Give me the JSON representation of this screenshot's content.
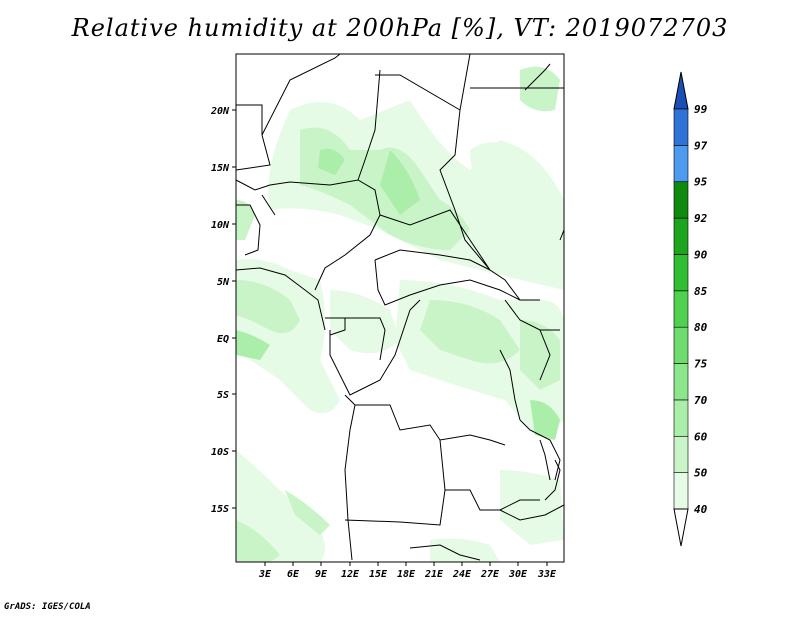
{
  "title": "Relative humidity at 200hPa [%], VT: 2019072703",
  "footer": "GrADS: IGES/COLA",
  "map": {
    "x_ticks": [
      "3E",
      "6E",
      "9E",
      "12E",
      "15E",
      "18E",
      "21E",
      "24E",
      "27E",
      "30E",
      "33E"
    ],
    "y_ticks": [
      "20N",
      "15N",
      "10N",
      "5N",
      "EQ",
      "5S",
      "10S",
      "15S"
    ]
  },
  "colorbar": {
    "levels": [
      "40",
      "50",
      "60",
      "70",
      "75",
      "80",
      "85",
      "90",
      "92",
      "95",
      "97",
      "99"
    ],
    "colors": [
      "#ffffff",
      "#e6fbe6",
      "#c8f4c8",
      "#aaeeaa",
      "#8ce68c",
      "#6edc6e",
      "#50d250",
      "#32be32",
      "#1ea51e",
      "#0f8a0f",
      "#4c9bef",
      "#2f73d8",
      "#1a4fb4"
    ]
  }
}
